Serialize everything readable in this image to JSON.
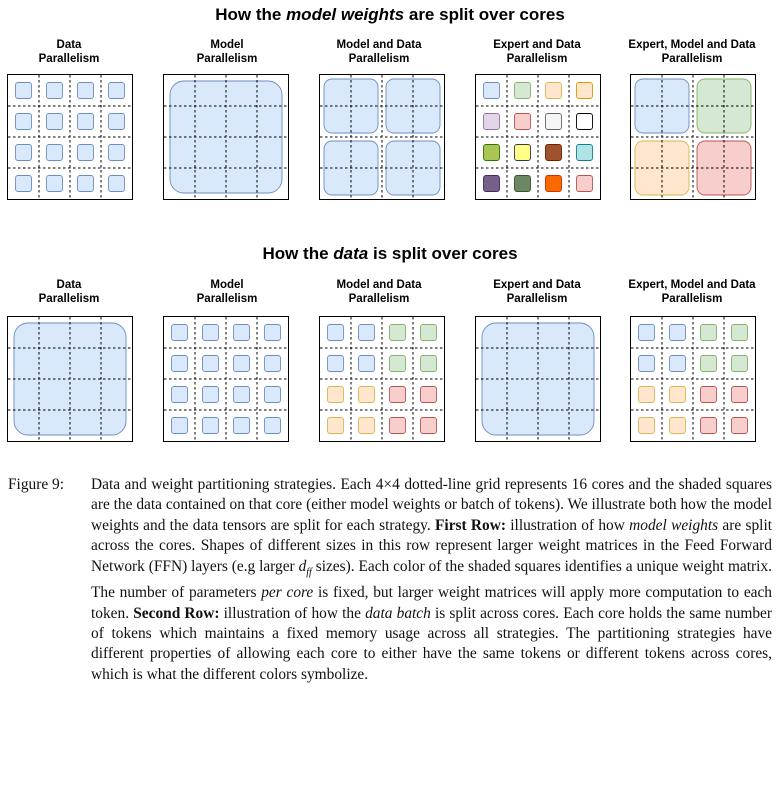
{
  "rows": [
    {
      "title_pre": "How the ",
      "title_em": "model weights",
      "title_post": " are split over cores",
      "panels": [
        {
          "label": "Data\nParallelism",
          "layout": "small16",
          "colors": [
            "blue",
            "blue",
            "blue",
            "blue",
            "blue",
            "blue",
            "blue",
            "blue",
            "blue",
            "blue",
            "blue",
            "blue",
            "blue",
            "blue",
            "blue",
            "blue"
          ]
        },
        {
          "label": "Model\nParallelism",
          "layout": "big1",
          "colors": [
            "blue"
          ]
        },
        {
          "label": "Model and Data\nParallelism",
          "layout": "med4",
          "colors": [
            "blue",
            "blue",
            "blue",
            "blue"
          ]
        },
        {
          "label": "Expert and Data\nParallelism",
          "layout": "small16",
          "colors": [
            "blue",
            "green",
            "orange",
            "orange2",
            "lavender",
            "pink",
            "lightgray",
            "white",
            "lime",
            "yellow",
            "brown",
            "teal",
            "purple",
            "darkgreen",
            "red",
            "pink"
          ]
        },
        {
          "label": "Expert, Model and Data\nParallelism",
          "layout": "med4",
          "colors": [
            "blue",
            "green",
            "orange",
            "pink"
          ]
        }
      ]
    },
    {
      "title_pre": "How the ",
      "title_em": "data",
      "title_post": " is split over cores",
      "panels": [
        {
          "label": "Data\nParallelism",
          "layout": "big1",
          "colors": [
            "blue"
          ]
        },
        {
          "label": "Model\nParallelism",
          "layout": "small16",
          "colors": [
            "blue",
            "blue",
            "blue",
            "blue",
            "blue",
            "blue",
            "blue",
            "blue",
            "blue",
            "blue",
            "blue",
            "blue",
            "blue",
            "blue",
            "blue",
            "blue"
          ]
        },
        {
          "label": "Model and Data\nParallelism",
          "layout": "small16",
          "colors": [
            "blue",
            "blue",
            "green",
            "green",
            "blue",
            "blue",
            "green",
            "green",
            "orange",
            "orange",
            "pink",
            "pink",
            "orange",
            "orange",
            "pink",
            "pink"
          ]
        },
        {
          "label": "Expert and Data\nParallelism",
          "layout": "big1",
          "colors": [
            "blue"
          ]
        },
        {
          "label": "Expert, Model and Data\nParallelism",
          "layout": "small16",
          "colors": [
            "blue",
            "blue",
            "green",
            "green",
            "blue",
            "blue",
            "green",
            "green",
            "orange",
            "orange",
            "pink",
            "pink",
            "orange",
            "orange",
            "pink",
            "pink"
          ]
        }
      ]
    }
  ],
  "palette": {
    "blue": [
      "#dae8fc",
      "#6c8ebf"
    ],
    "green": [
      "#d5e8d4",
      "#82b366"
    ],
    "orange": [
      "#ffe6cc",
      "#d6b656"
    ],
    "orange2": [
      "#ffe6cc",
      "#d79b00"
    ],
    "pink": [
      "#f8cecc",
      "#b85450"
    ],
    "lavender": [
      "#e1d5e7",
      "#9673a6"
    ],
    "lightgray": [
      "#f5f5f5",
      "#666666"
    ],
    "white": [
      "#ffffff",
      "#000000"
    ],
    "lime": [
      "#a9c555",
      "#2d7600"
    ],
    "yellow": [
      "#ffff88",
      "#36393d"
    ],
    "brown": [
      "#a0522d",
      "#6d1f00"
    ],
    "teal": [
      "#b0e3e6",
      "#0e8088"
    ],
    "purple": [
      "#76608a",
      "#432d57"
    ],
    "darkgreen": [
      "#6d8764",
      "#3a5431"
    ],
    "red": [
      "#fa6800",
      "#c73500"
    ]
  },
  "caption": {
    "label": "Figure 9:",
    "s1": "Data and weight partitioning strategies. Each 4×4 dotted-line grid represents 16 cores and the shaded squares are the data contained on that core (either model weights or batch of tokens). We illustrate both how the model weights and the data tensors are split for each strategy.",
    "b1": "First Row:",
    "s2": "illustration of how",
    "i1": "model weights",
    "s3": "are split across the cores. Shapes of different sizes in this row represent larger weight matrices in the Feed Forward Network (FFN) layers (e.g larger",
    "math_base": "d",
    "math_sub": "ff",
    "s4": "sizes). Each color of the shaded squares identifies a unique weight matrix. The number of parameters",
    "i2": "per core",
    "s5": "is fixed, but larger weight matrices will apply more computation to each token.",
    "b2": "Second Row:",
    "s6": "illustration of how the",
    "i3": "data batch",
    "s7": "is split across cores. Each core holds the same number of tokens which maintains a fixed memory usage across all strategies. The partitioning strategies have different properties of allowing each core to either have the same tokens or different tokens across cores, which is what the different colors symbolize."
  }
}
